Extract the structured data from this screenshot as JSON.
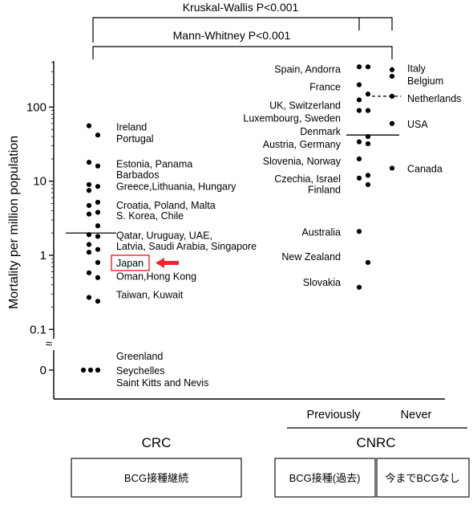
{
  "chart_data": {
    "type": "scatter",
    "ylabel": "Mortality per million population",
    "yscale": "log",
    "yticks": [
      "0",
      "0.1",
      "1",
      "10",
      "100"
    ],
    "axis_break": "≈",
    "stats": {
      "kruskal_wallis": "Kruskal-Wallis P<0.001",
      "mann_whitney": "Mann-Whitney P<0.001"
    },
    "groups": [
      {
        "key": "crc",
        "name": "CRC",
        "box_label": "BCG接種継続",
        "median": 2.0,
        "points": [
          56,
          42,
          18,
          16,
          9,
          8.5,
          7.5,
          5.2,
          4.7,
          3.8,
          3.6,
          2.5,
          1.9,
          1.8,
          1.4,
          1.2,
          1.1,
          0.8,
          0.58,
          0.5,
          0.27,
          0.24,
          0,
          0,
          0
        ],
        "labels": [
          {
            "text": "Ireland",
            "value": 55
          },
          {
            "text": "Portugal",
            "value": 38
          },
          {
            "text": "Estonia, Panama",
            "value": 17.5
          },
          {
            "text": "Barbados",
            "value": 12.5
          },
          {
            "text": "Greece,Lithuania, Hungary",
            "value": 8.6
          },
          {
            "text": "Croatia, Poland, Malta",
            "value": 4.8
          },
          {
            "text": "S. Korea, Chile",
            "value": 3.5
          },
          {
            "text": "Qatar, Uruguay, UAE,",
            "value": 1.9
          },
          {
            "text": "Latvia, Saudi Arabia, Singapore",
            "value": 1.35
          },
          {
            "text": "Japan",
            "value": 0.8,
            "highlight": true
          },
          {
            "text": "Oman,Hong Kong",
            "value": 0.53
          },
          {
            "text": "Taiwan, Kuwait",
            "value": 0.3
          },
          {
            "text": "Greenland",
            "value": "0-top"
          },
          {
            "text": "Seychelles",
            "value": "0"
          },
          {
            "text": "Saint Kitts and Nevis",
            "value": "0-bottom"
          }
        ]
      },
      {
        "key": "previously",
        "name": "Previously",
        "box_label": "BCG接種(過去)",
        "median": 42,
        "points": [
          350,
          350,
          200,
          150,
          125,
          90,
          90,
          40,
          34,
          32,
          20,
          12,
          11,
          9,
          2.1,
          0.8,
          0.37
        ],
        "labels": [
          {
            "text": "Spain, Andorra",
            "value": 330
          },
          {
            "text": "France",
            "value": 190
          },
          {
            "text": "UK, Switzerland",
            "value": 108
          },
          {
            "text": "Luxembourg, Sweden",
            "value": 72
          },
          {
            "text": "Denmark",
            "value": 48
          },
          {
            "text": "Austria, Germany",
            "value": 32
          },
          {
            "text": "Slovenia, Norway",
            "value": 19
          },
          {
            "text": "Czechia, Israel",
            "value": 11
          },
          {
            "text": "Finland",
            "value": 7.8
          },
          {
            "text": "Australia",
            "value": 2.1
          },
          {
            "text": "New Zealand",
            "value": 0.98
          },
          {
            "text": "Slovakia",
            "value": 0.44
          }
        ]
      },
      {
        "key": "never",
        "name": "Never",
        "box_label": "今までBCGなし",
        "median": 140,
        "points": [
          320,
          260,
          140,
          60,
          15
        ],
        "labels": [
          {
            "text": "Italy",
            "value": 340
          },
          {
            "text": "Belgium",
            "value": 230
          },
          {
            "text": "Netherlands",
            "value": 133
          },
          {
            "text": "USA",
            "value": 60
          },
          {
            "text": "Canada",
            "value": 15
          }
        ]
      }
    ],
    "cnrc_label": "CNRC"
  }
}
